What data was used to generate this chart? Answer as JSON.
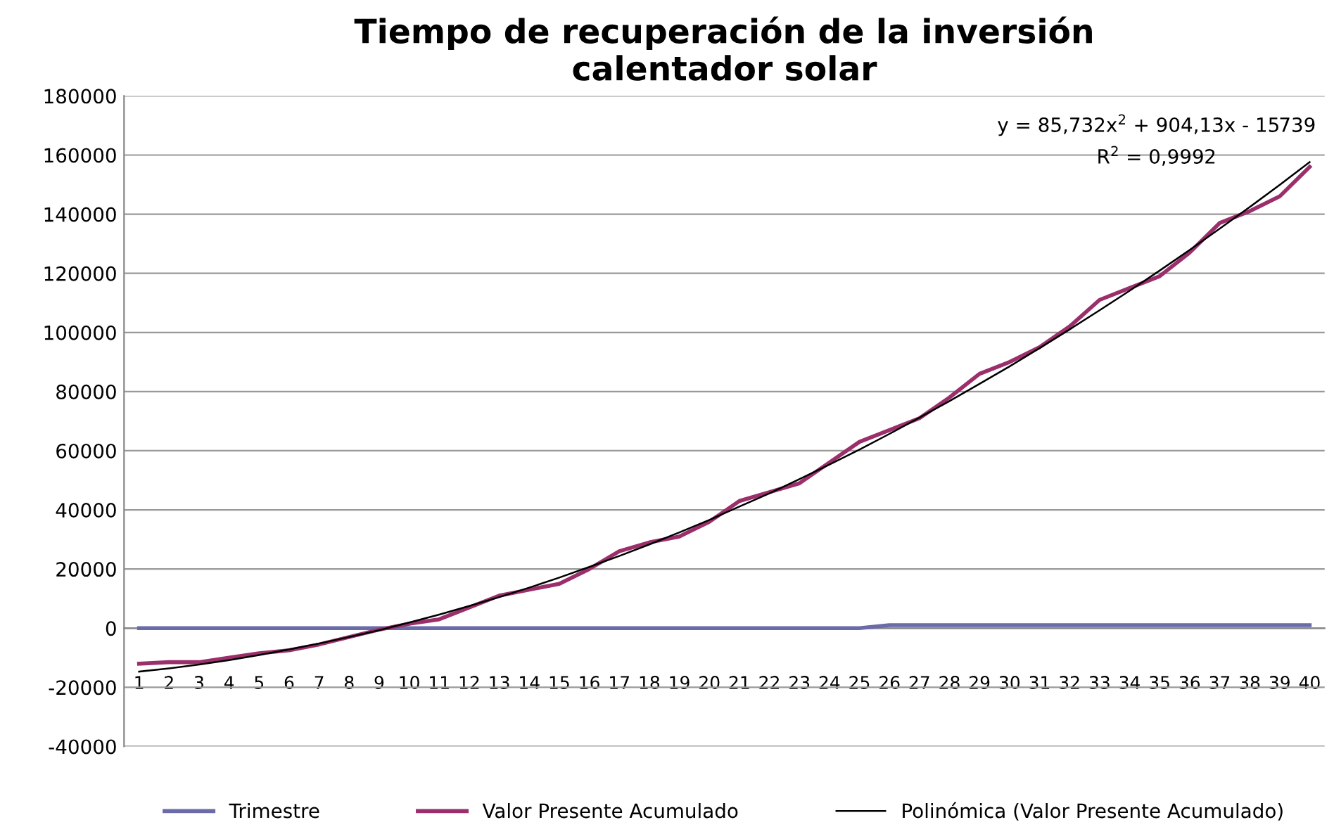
{
  "chart_data": {
    "type": "line",
    "title": "Tiempo de recuperación de la inversión\ncalentador solar",
    "categories": [
      "1",
      "2",
      "3",
      "4",
      "5",
      "6",
      "7",
      "8",
      "9",
      "10",
      "11",
      "12",
      "13",
      "14",
      "15",
      "16",
      "17",
      "18",
      "19",
      "20",
      "21",
      "22",
      "23",
      "24",
      "25",
      "26",
      "27",
      "28",
      "29",
      "30",
      "31",
      "32",
      "33",
      "34",
      "35",
      "36",
      "37",
      "38",
      "39",
      "40"
    ],
    "series": [
      {
        "name": "Trimestre",
        "color": "#6b6baa",
        "values": [
          0,
          0,
          0,
          0,
          0,
          0,
          0,
          0,
          0,
          0,
          0,
          0,
          0,
          0,
          0,
          0,
          0,
          0,
          0,
          0,
          0,
          0,
          0,
          0,
          0,
          1000,
          1000,
          1000,
          1000,
          1000,
          1000,
          1000,
          1000,
          1000,
          1000,
          1000,
          1000,
          1000,
          1000,
          1000
        ]
      },
      {
        "name": "Valor Presente Acumulado",
        "color": "#9b2f6b",
        "values": [
          -12000,
          -11500,
          -11500,
          -10000,
          -8500,
          -7500,
          -5500,
          -3000,
          -500,
          1500,
          3000,
          7000,
          11000,
          13000,
          15000,
          20000,
          26000,
          29000,
          31000,
          36000,
          43000,
          46000,
          49000,
          56000,
          63000,
          67000,
          71000,
          78000,
          86000,
          90000,
          95000,
          102000,
          111000,
          115000,
          119000,
          127000,
          137000,
          141000,
          146000,
          156000
        ]
      },
      {
        "name": "Polinómica (Valor Presente Acumulado)",
        "color": "#000000",
        "type": "line",
        "values": [
          -14700,
          -13600,
          -12300,
          -10800,
          -9100,
          -7200,
          -5200,
          -3000,
          -700,
          1900,
          4600,
          7500,
          10500,
          13700,
          17100,
          20700,
          24400,
          28300,
          32400,
          36600,
          41100,
          45600,
          50400,
          55300,
          60400,
          65700,
          71200,
          76800,
          82600,
          88500,
          94700,
          101000,
          107500,
          114100,
          120900,
          127900,
          135100,
          142400,
          149900,
          157600
        ]
      }
    ],
    "ylim": [
      -40000,
      180000
    ],
    "yticks": [
      -40000,
      -20000,
      0,
      20000,
      40000,
      60000,
      80000,
      100000,
      120000,
      140000,
      160000,
      180000
    ],
    "grid": "y",
    "legend": "bottom",
    "annotations": [
      "y = 85,732x$^{2}$ + 904,13x - 15739",
      "R$^{2}$ = 0,9992"
    ]
  }
}
